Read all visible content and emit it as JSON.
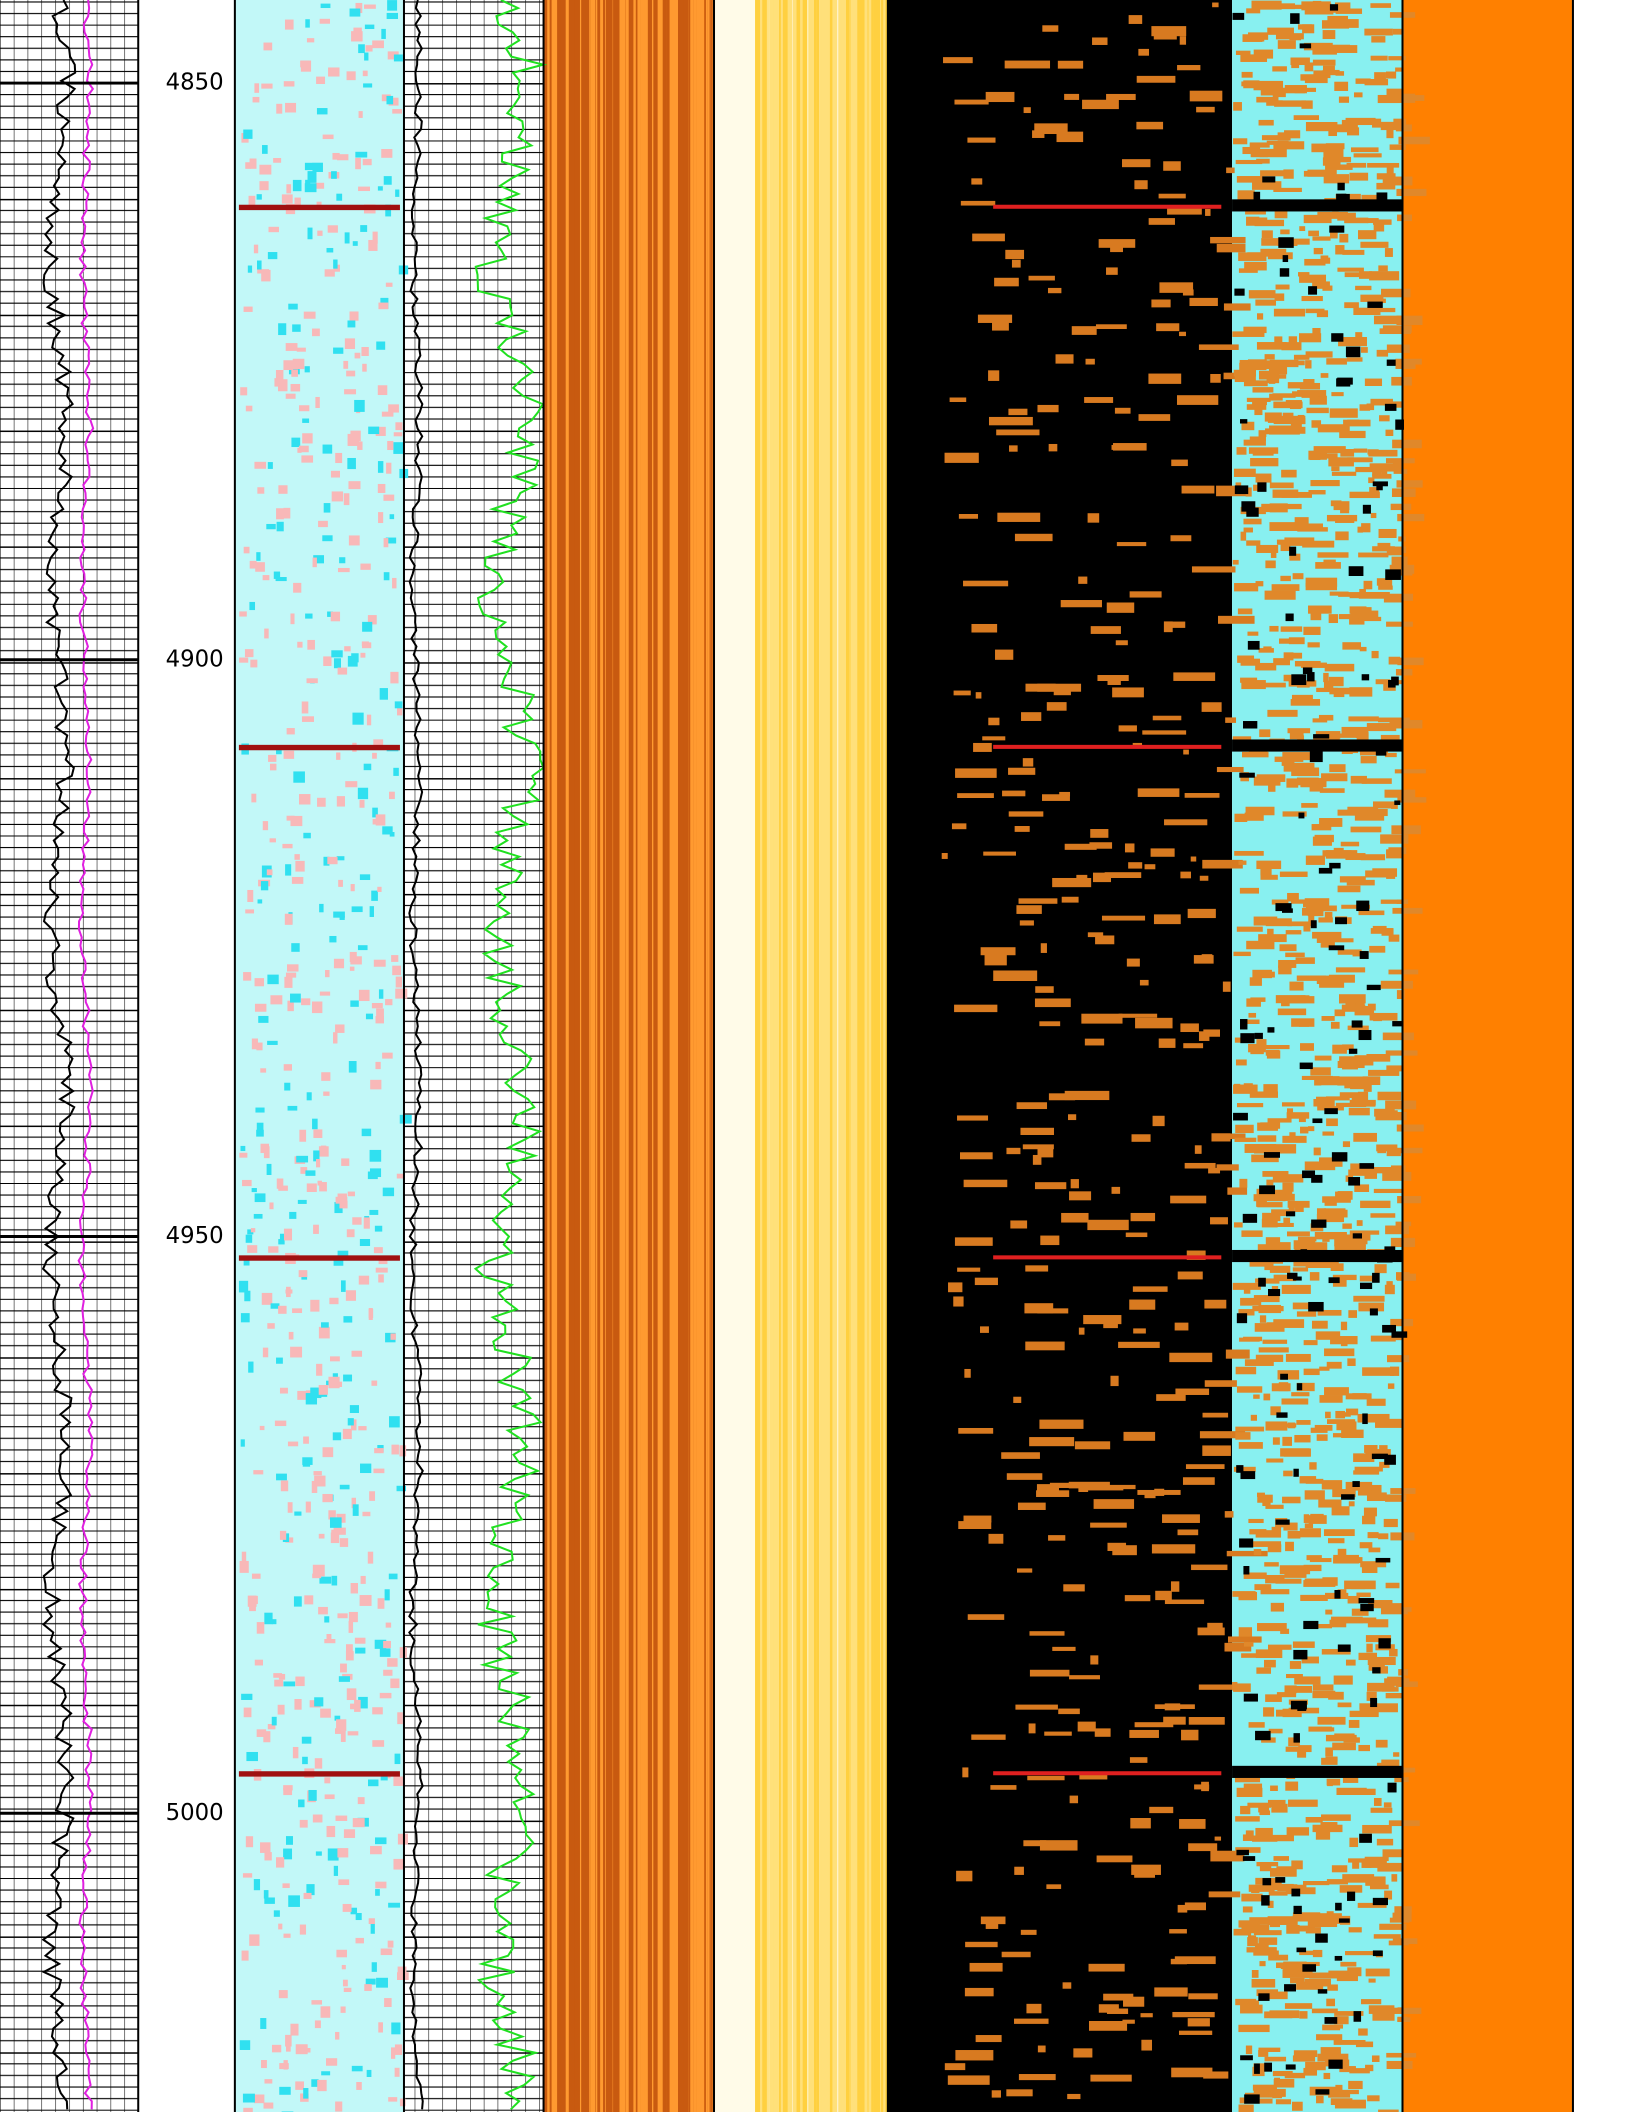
{
  "chart_data": {
    "type": "well-log",
    "ylim": [
      4842.8,
      5025.9
    ],
    "yticks": [
      4850,
      4900,
      4950,
      5000
    ]
  }
}
